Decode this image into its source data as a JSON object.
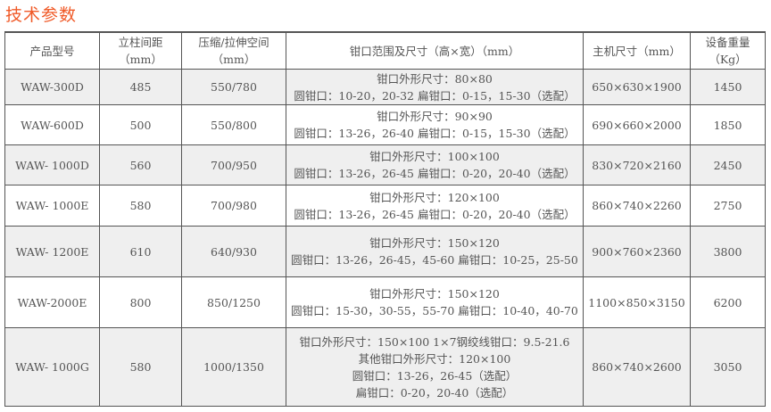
{
  "title": "技术参数",
  "headers": [
    [
      "产品型号"
    ],
    [
      "立柱间距",
      "（mm）"
    ],
    [
      "压缩/拉伸空间",
      "（mm）"
    ],
    [
      "钳口范围及尺寸（高×宽）（mm）"
    ],
    [
      "主机尺寸（mm）"
    ],
    [
      "设备重量",
      "（Kg）"
    ]
  ],
  "rows": [
    {
      "model": "WAW-300D",
      "spacing": "485",
      "space": "550/780",
      "jaw": [
        "钳口外形尺寸：80×80",
        "圆钳口：10-20，20-32 扁钳口：0-15，15-30（选配）"
      ],
      "size": "650×630×1900",
      "weight": "1450"
    },
    {
      "model": "WAW-600D",
      "spacing": "500",
      "space": "550/800",
      "jaw": [
        "钳口外形尺寸：90×90",
        "圆钳口：13-26，26-40 扁钳口：0-15，15-30（选配）"
      ],
      "size": "690×660×2000",
      "weight": "1850"
    },
    {
      "model": "WAW- 1000D",
      "spacing": "560",
      "space": "700/950",
      "jaw": [
        "钳口外形尺寸：100×100",
        "圆钳口：13-26，26-45  扁钳口：0-20，20-40（选配）"
      ],
      "size": "830×720×2160",
      "weight": "2450"
    },
    {
      "model": "WAW- 1000E",
      "spacing": "580",
      "space": "700/980",
      "jaw": [
        "钳口外形尺寸：120×100",
        "圆钳口：13-26，26-45 扁钳口：0-20，20-40（选配）"
      ],
      "size": "860×740×2260",
      "weight": "2750"
    },
    {
      "model": "WAW- 1200E",
      "spacing": "610",
      "space": "640/930",
      "jaw": [
        "钳口外形尺寸：150×120",
        "圆钳口：13-26，26-45，45-60 扁钳口：10-25，25-50"
      ],
      "size": "900×760×2360",
      "weight": "3800"
    },
    {
      "model": "WAW-2000E",
      "spacing": "800",
      "space": "850/1250",
      "jaw": [
        "钳口外形尺寸：150×120",
        "圆钳口：15-30，30-55，55-70 扁钳口：10-40，40-70"
      ],
      "size": "1100×850×3150",
      "weight": "6200"
    },
    {
      "model": "WAW- 1000G",
      "spacing": "580",
      "space": "1000/1350",
      "jaw": [
        "钳口外形尺寸：150×100 1×7钢绞线钳口：9.5-21.6",
        "其他钳口外形尺寸：120×100",
        "圆钳口：13-26，26-45（选配）",
        "扁钳口：0-20，20-40（选配）"
      ],
      "size": "860×740×2600",
      "weight": "3050"
    }
  ]
}
